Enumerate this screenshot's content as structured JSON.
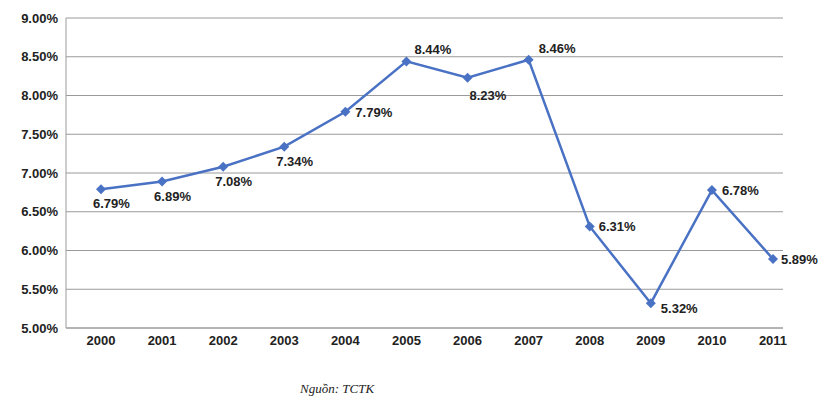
{
  "chart_data": {
    "type": "line",
    "categories": [
      "2000",
      "2001",
      "2002",
      "2003",
      "2004",
      "2005",
      "2006",
      "2007",
      "2008",
      "2009",
      "2010",
      "2011"
    ],
    "values": [
      6.79,
      6.89,
      7.08,
      7.34,
      7.79,
      8.44,
      8.23,
      8.46,
      6.31,
      5.32,
      6.78,
      5.89
    ],
    "value_labels": [
      "6.79%",
      "6.89%",
      "7.08%",
      "7.34%",
      "7.79%",
      "8.44%",
      "8.23%",
      "8.46%",
      "6.31%",
      "5.32%",
      "6.78%",
      "5.89%"
    ],
    "color": "#4a72c4",
    "marker": "diamond",
    "ylim": [
      5,
      9
    ],
    "yticks": [
      {
        "value": 5,
        "label": "5.00%"
      },
      {
        "value": 5.5,
        "label": "5.50%"
      },
      {
        "value": 6,
        "label": "6.00%"
      },
      {
        "value": 6.5,
        "label": "6.50%"
      },
      {
        "value": 7,
        "label": "7.00%"
      },
      {
        "value": 7.5,
        "label": "7.50%"
      },
      {
        "value": 8,
        "label": "8.00%"
      },
      {
        "value": 8.5,
        "label": "8.50%"
      },
      {
        "value": 9,
        "label": "9.00%"
      }
    ],
    "grid": true,
    "data_labels": true,
    "annotations": [
      "Nguồn: TCTK"
    ]
  }
}
